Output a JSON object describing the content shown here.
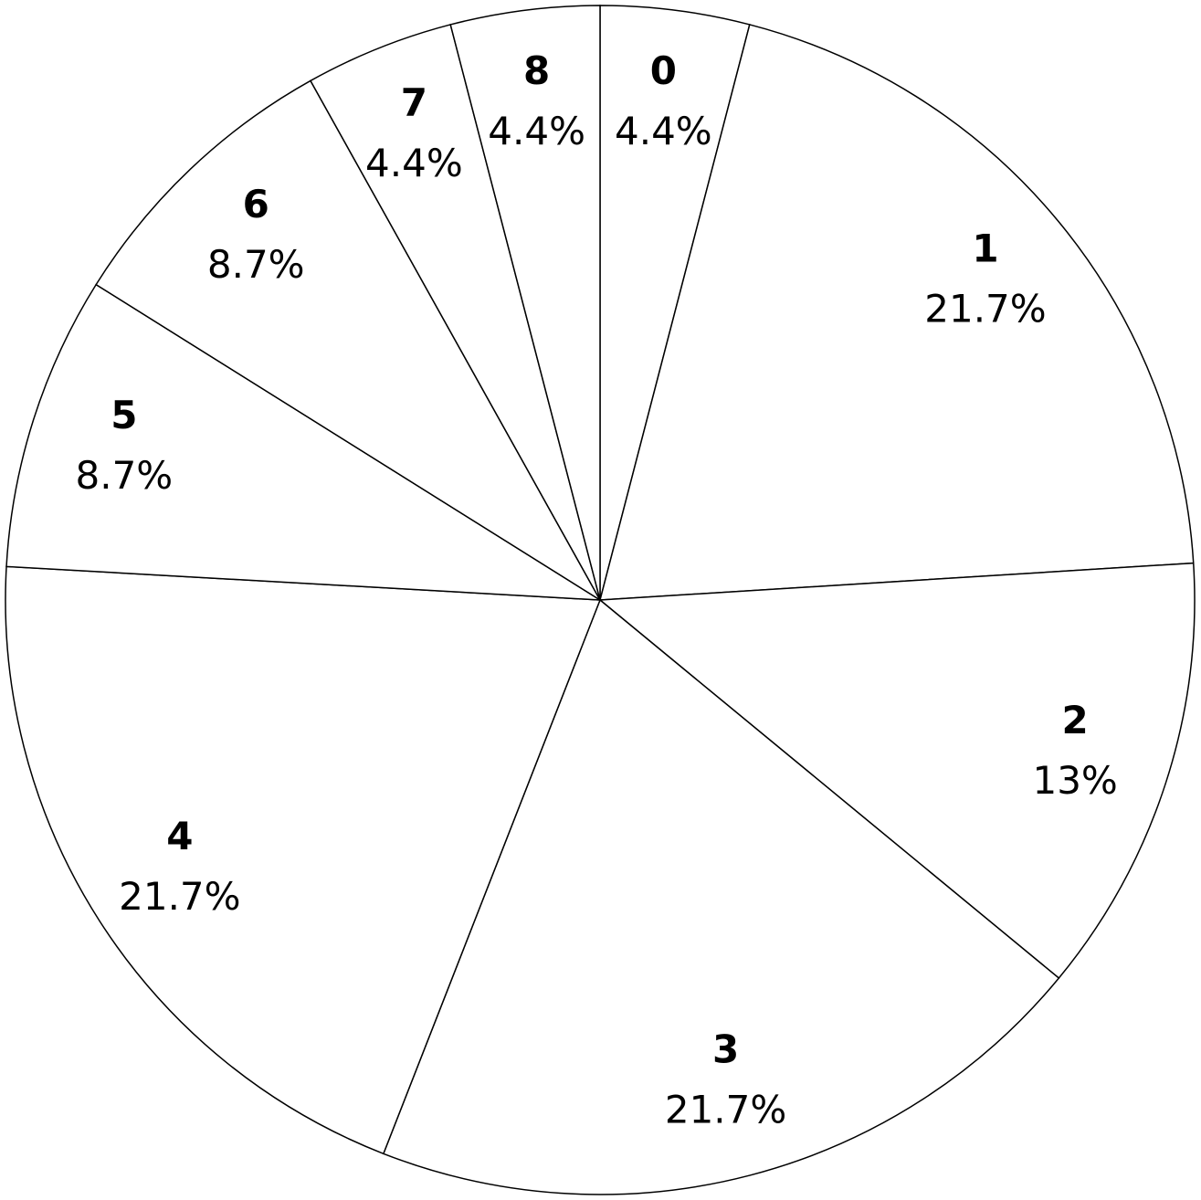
{
  "chart_data": {
    "type": "pie",
    "categories": [
      "0",
      "1",
      "2",
      "3",
      "4",
      "5",
      "6",
      "7",
      "8"
    ],
    "values": [
      4.4,
      21.7,
      13,
      21.7,
      21.7,
      8.7,
      8.7,
      4.4,
      4.4
    ],
    "value_labels": [
      "4.4%",
      "21.7%",
      "13%",
      "21.7%",
      "21.7%",
      "8.7%",
      "8.7%",
      "4.4%",
      "4.4%"
    ],
    "color": "#ffffff",
    "edge_color": "#000000"
  }
}
